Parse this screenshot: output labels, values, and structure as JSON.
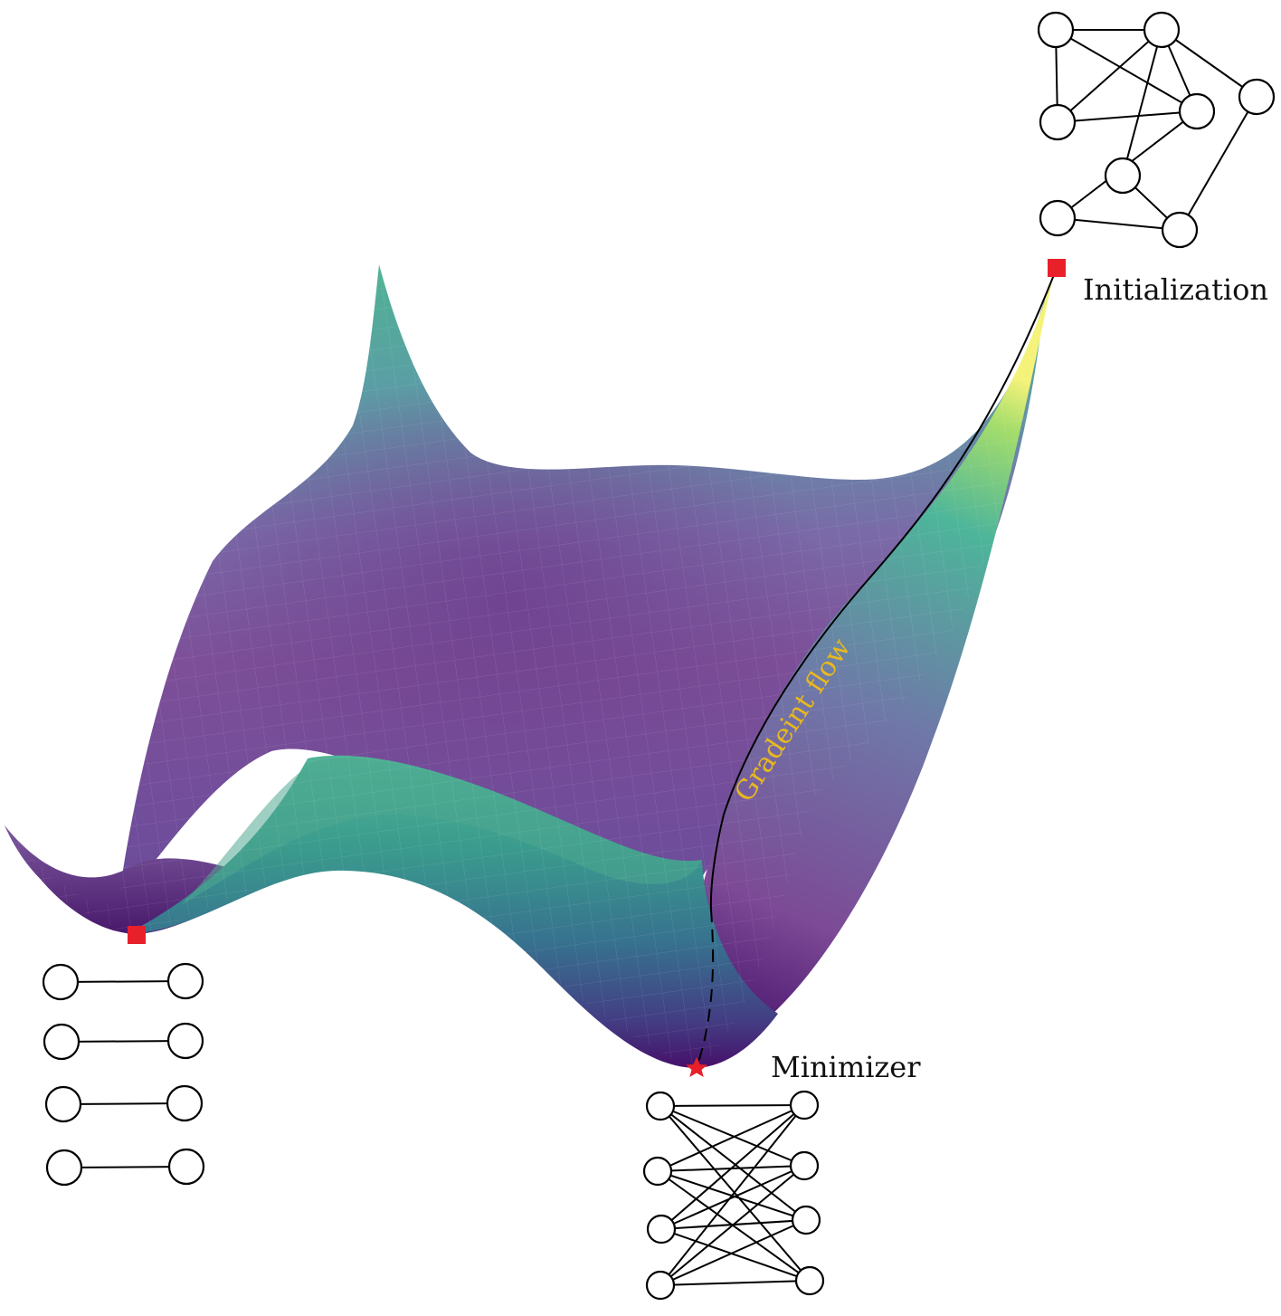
{
  "labels": {
    "initialization": "Initialization",
    "minimizer": "Minimizer",
    "gradient_flow": "Gradeint flow"
  },
  "colors": {
    "marker": "#e8202a",
    "flow_text": "#e8b81e",
    "path": "#000000",
    "surface_low": "#46106a",
    "surface_mid": "#7b5ba6",
    "surface_teal": "#3e9f8e",
    "surface_high": "#f5f27a"
  },
  "markers": {
    "initialization": "square-marker",
    "local_minimum": "square-marker",
    "minimizer": "star-marker"
  },
  "graphs": {
    "initialization": {
      "nodes": 8,
      "edges": [
        [
          0,
          1
        ],
        [
          0,
          2
        ],
        [
          0,
          3
        ],
        [
          1,
          3
        ],
        [
          1,
          4
        ],
        [
          1,
          5
        ],
        [
          1,
          2
        ],
        [
          2,
          3
        ],
        [
          3,
          6
        ],
        [
          4,
          7
        ],
        [
          5,
          7
        ],
        [
          6,
          7
        ]
      ]
    },
    "local_minimum": {
      "pairs": 4
    },
    "minimizer": {
      "left": 4,
      "right": 4
    }
  }
}
